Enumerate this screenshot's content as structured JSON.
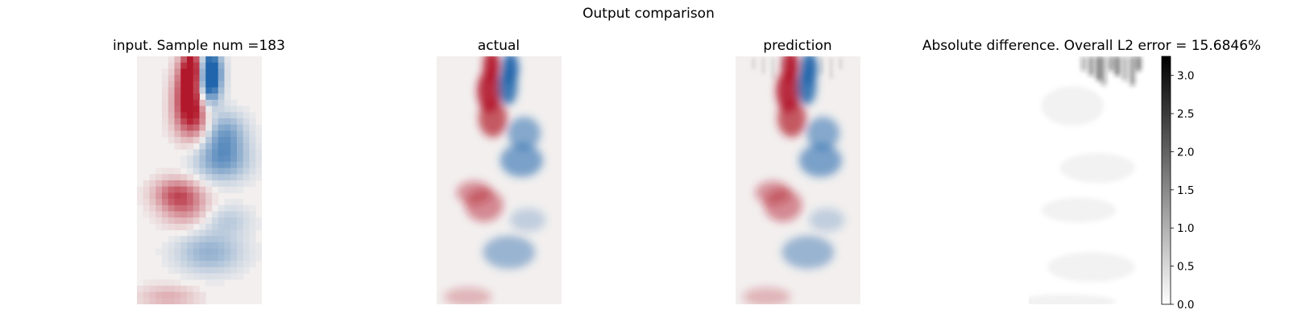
{
  "figure": {
    "suptitle": "Output comparison"
  },
  "panels": [
    {
      "id": "input",
      "title": "input. Sample num =183",
      "colormap": "diverging-red-blue",
      "style": "pixelated"
    },
    {
      "id": "actual",
      "title": "actual",
      "colormap": "diverging-red-blue",
      "style": "smooth"
    },
    {
      "id": "prediction",
      "title": "prediction",
      "colormap": "diverging-red-blue",
      "style": "smooth-noisy"
    },
    {
      "id": "abs-diff",
      "title": "Absolute difference. Overall L2 error = 15.6846%",
      "colormap": "greys",
      "style": "error-map"
    }
  ],
  "chart_data": {
    "type": "heatmap",
    "colorbar": {
      "range": [
        0.0,
        3.25
      ],
      "ticks": [
        "0.0",
        "0.5",
        "1.0",
        "1.5",
        "2.0",
        "2.5",
        "3.0"
      ],
      "colors": [
        "#ffffff",
        "#000000"
      ]
    },
    "diverging_colors": {
      "negative": "#2166ac",
      "neutral": "#f2efee",
      "positive": "#b2182b"
    },
    "sample_num": 183,
    "l2_error_percent": 15.6846
  }
}
